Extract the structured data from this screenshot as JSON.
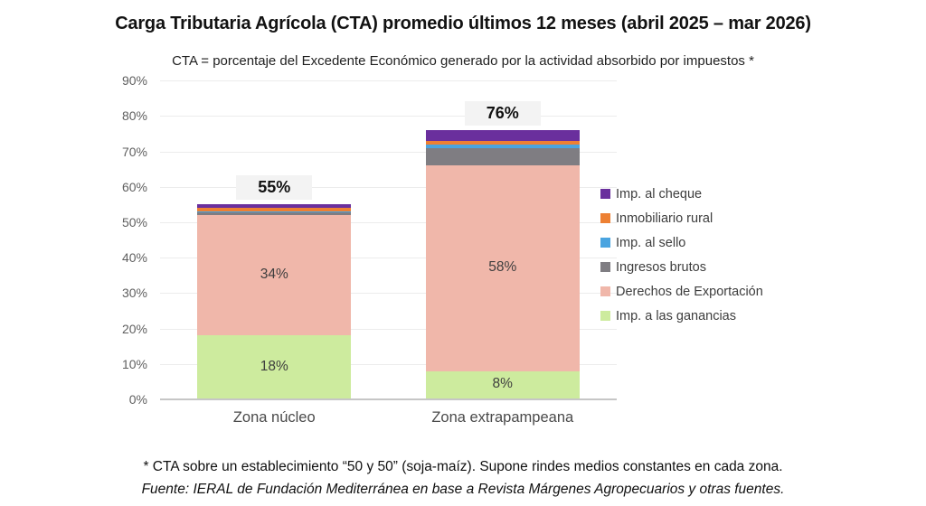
{
  "page": {
    "title": "Carga Tributaria Agrícola (CTA) promedio últimos 12 meses (abril 2025 – mar 2026)",
    "subtitle": "CTA = porcentaje del Excedente Económico generado por la actividad absorbido por impuestos *",
    "footnote": "* CTA sobre un establecimiento “50 y 50” (soja-maíz). Supone rindes medios constantes en cada zona.",
    "source": "Fuente: IERAL de Fundación Mediterránea en base a Revista Márgenes Agropecuarios y otras fuentes."
  },
  "chart_data": {
    "type": "bar",
    "stacked": true,
    "title": "Carga Tributaria Agrícola (CTA) promedio últimos 12 meses (abril 2025 – mar 2026)",
    "categories": [
      "Zona núcleo",
      "Zona extrapampeana"
    ],
    "series": [
      {
        "name": "Imp. a las ganancias",
        "color": "#cdeb9e",
        "values": [
          18,
          8
        ],
        "segment_labels": [
          "18%",
          "8%"
        ]
      },
      {
        "name": "Derechos de Exportación",
        "color": "#f0b7aa",
        "values": [
          34,
          58
        ],
        "segment_labels": [
          "34%",
          "58%"
        ]
      },
      {
        "name": "Ingresos brutos",
        "color": "#7f7d82",
        "values": [
          0.8,
          5
        ],
        "segment_labels": [
          "",
          ""
        ]
      },
      {
        "name": "Imp. al sello",
        "color": "#4aa4e0",
        "values": [
          0.2,
          1
        ],
        "segment_labels": [
          "",
          ""
        ]
      },
      {
        "name": "Inmobiliario rural",
        "color": "#ed8033",
        "values": [
          1,
          1
        ],
        "segment_labels": [
          "",
          ""
        ]
      },
      {
        "name": "Imp. al cheque",
        "color": "#6a2f9d",
        "values": [
          1,
          3
        ],
        "segment_labels": [
          "",
          ""
        ]
      }
    ],
    "totals": [
      55,
      76
    ],
    "total_labels": [
      "55%",
      "76%"
    ],
    "y_axis": {
      "ticks": [
        "0%",
        "10%",
        "20%",
        "30%",
        "40%",
        "50%",
        "60%",
        "70%",
        "80%",
        "90%"
      ],
      "min": 0,
      "max": 90,
      "grid": true
    },
    "xlabel": "",
    "ylabel": "",
    "legend_position": "right",
    "legend_order": "top-is-last-series"
  }
}
